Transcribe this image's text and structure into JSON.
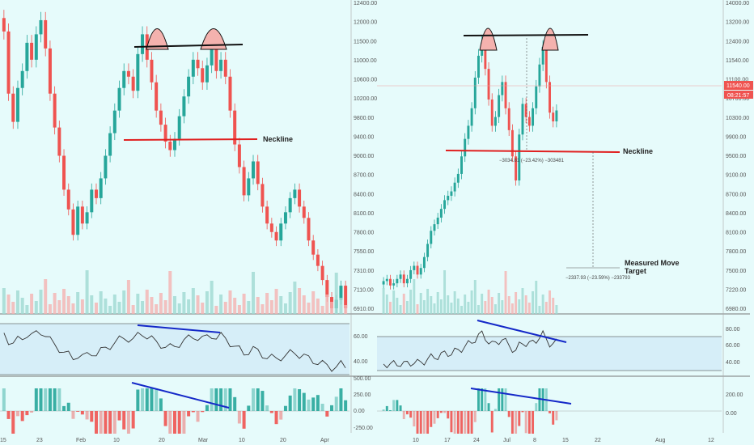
{
  "chart_data": [
    {
      "type": "candlestick",
      "panel": "left",
      "price_axis": [
        "12400.00",
        "12000.00",
        "11500.00",
        "11000.00",
        "10600.00",
        "10200.00",
        "9800.00",
        "9400.00",
        "9000.00",
        "8700.00",
        "8400.00",
        "8100.00",
        "7800.00",
        "7550.00",
        "7310.00",
        "7110.00",
        "6910.00"
      ],
      "x_ticks": [
        "15",
        "23",
        "Feb",
        "10",
        "20",
        "Mar",
        "10",
        "20",
        "Apr"
      ],
      "rsi_ticks": [
        "60.00",
        "40.00"
      ],
      "macd_ticks": [
        "500.00",
        "250.00",
        "0.00",
        "-250.00"
      ],
      "ylim": [
        6900,
        12400
      ],
      "closes": [
        11900,
        10800,
        10300,
        10900,
        11200,
        11700,
        11400,
        11850,
        12100,
        11600,
        10800,
        10200,
        9700,
        9100,
        8750,
        8300,
        8800,
        8500,
        8700,
        9100,
        8950,
        9300,
        9700,
        10100,
        10500,
        10900,
        11200,
        11100,
        10850,
        11500,
        11850,
        11400,
        11000,
        10500,
        10250,
        9950,
        9800,
        10000,
        10400,
        10750,
        11100,
        11400,
        11250,
        11000,
        11300,
        11600,
        11200,
        11400,
        11100,
        10500,
        9900,
        9500,
        9000,
        9300,
        9600,
        9200,
        8800,
        8500,
        8350,
        8200,
        8500,
        8700,
        8950,
        9100,
        8800,
        8600,
        8200,
        7950,
        7750,
        7500,
        7200,
        7000,
        7150,
        7400,
        7000
      ],
      "annotations": {
        "neckline_label": "Neckline"
      }
    },
    {
      "type": "candlestick",
      "panel": "right",
      "price_axis": [
        "14000.00",
        "13200.00",
        "12400.00",
        "11540.00",
        "11100.00",
        "10700.00",
        "10300.00",
        "9900.00",
        "9500.00",
        "9100.00",
        "8700.00",
        "8400.00",
        "8100.00",
        "7800.00",
        "7500.00",
        "7220.00",
        "6980.00"
      ],
      "x_ticks": [
        "10",
        "17",
        "24",
        "Jul",
        "8",
        "15",
        "22",
        "Aug",
        "12"
      ],
      "rsi_ticks": [
        "80.00",
        "60.00",
        "40.00"
      ],
      "macd_ticks": [
        "200.00",
        "0.00"
      ],
      "ylim": [
        6900,
        14000
      ],
      "closes": [
        7650,
        7700,
        7550,
        7600,
        7700,
        7800,
        7600,
        7700,
        7900,
        8000,
        7800,
        7950,
        8200,
        8500,
        8800,
        8950,
        9100,
        9300,
        9500,
        9600,
        9700,
        9900,
        10100,
        10500,
        10900,
        11200,
        11600,
        12300,
        12800,
        13100,
        12500,
        11800,
        11200,
        11400,
        11900,
        12200,
        11600,
        11100,
        10500,
        9950,
        11000,
        11700,
        11400,
        11200,
        11600,
        12100,
        12600,
        13000,
        12200,
        11500,
        11300,
        11550
      ],
      "last_price_tag": "11540.00",
      "countdown_tag": "08:21:57",
      "annotations": {
        "neckline_label": "Neckline",
        "measurement_1": "−3034.81 (−23.42%) −303481",
        "measured_move_label": "Measured Move",
        "measured_move_label_2": "Target",
        "measurement_2": "−2337.93 (−23.59%) −233793"
      }
    }
  ],
  "colors": {
    "background": "#e6fbfb",
    "bull": "#26a69a",
    "bear": "#ef5350",
    "neckline": "#e02020",
    "top_line": "#111111",
    "trend_line": "#1428c8",
    "rsi_band": "#d6eef8",
    "macd_pos": "#26a69a",
    "macd_neg": "#ef5350"
  }
}
